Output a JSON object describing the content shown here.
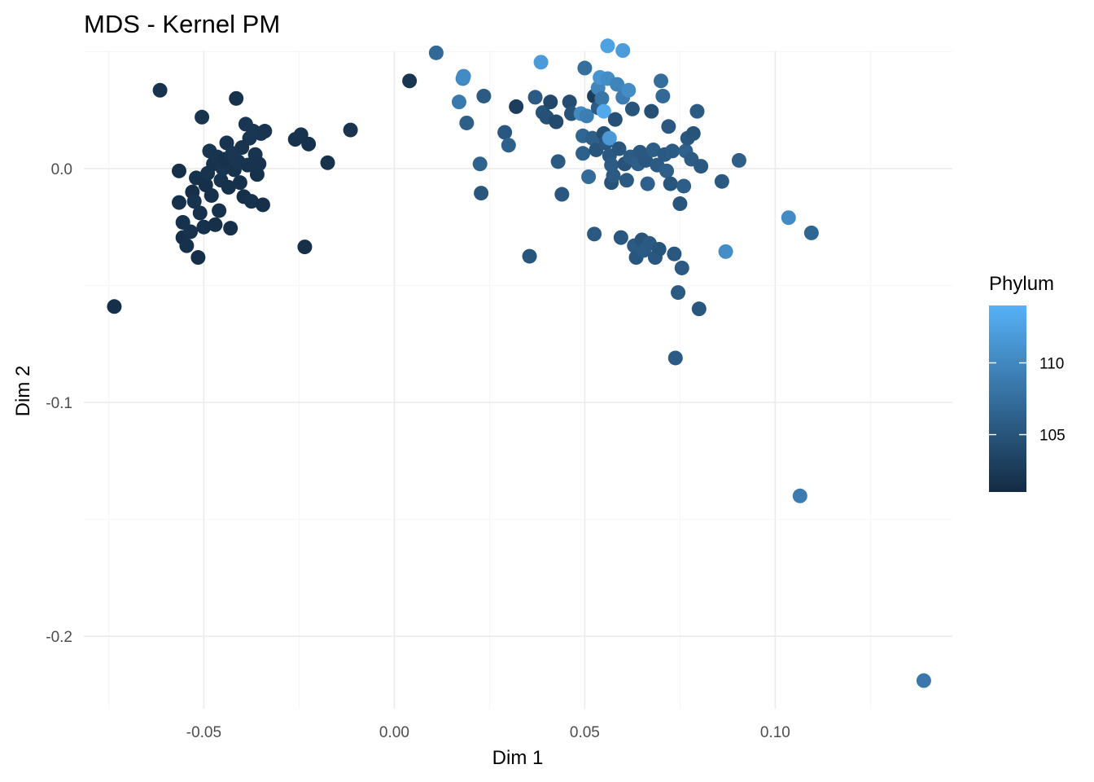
{
  "chart_data": {
    "type": "scatter",
    "title": "MDS - Kernel PM",
    "xlabel": "Dim 1",
    "ylabel": "Dim 2",
    "xlim": [
      -0.0815,
      0.1465
    ],
    "ylim": [
      -0.231,
      0.0505
    ],
    "x_ticks": [
      -0.05,
      0.0,
      0.05,
      0.1
    ],
    "x_tick_labels": [
      "-0.05",
      "0.00",
      "0.05",
      "0.10"
    ],
    "y_ticks": [
      0.0,
      -0.1,
      -0.2
    ],
    "y_tick_labels": [
      "0.0",
      "-0.1",
      "-0.2"
    ],
    "grid": true,
    "legend": {
      "title": "Phylum",
      "type": "colorbar",
      "placement": "right",
      "range": [
        101,
        114
      ],
      "ticks": [
        110,
        105
      ],
      "tick_labels": [
        "110",
        "105"
      ],
      "color_low": "#132B43",
      "color_high": "#56B1F7"
    },
    "points": [
      {
        "x": -0.0735,
        "y": -0.059,
        "c": 101.5
      },
      {
        "x": -0.0615,
        "y": 0.0335,
        "c": 101.8
      },
      {
        "x": -0.0565,
        "y": -0.001,
        "c": 101.5
      },
      {
        "x": -0.0565,
        "y": -0.0145,
        "c": 101.6
      },
      {
        "x": -0.0555,
        "y": -0.023,
        "c": 101.7
      },
      {
        "x": -0.0555,
        "y": -0.0295,
        "c": 101.5
      },
      {
        "x": -0.0545,
        "y": -0.033,
        "c": 101.6
      },
      {
        "x": -0.0535,
        "y": -0.027,
        "c": 101.7
      },
      {
        "x": -0.053,
        "y": -0.01,
        "c": 101.5
      },
      {
        "x": -0.0525,
        "y": -0.014,
        "c": 101.8
      },
      {
        "x": -0.052,
        "y": -0.004,
        "c": 101.6
      },
      {
        "x": -0.0515,
        "y": -0.038,
        "c": 101.5
      },
      {
        "x": -0.051,
        "y": -0.019,
        "c": 101.7
      },
      {
        "x": -0.0505,
        "y": 0.022,
        "c": 101.9
      },
      {
        "x": -0.05,
        "y": -0.025,
        "c": 101.6
      },
      {
        "x": -0.0495,
        "y": -0.007,
        "c": 101.5
      },
      {
        "x": -0.049,
        "y": -0.002,
        "c": 101.8
      },
      {
        "x": -0.0485,
        "y": 0.0075,
        "c": 102.0
      },
      {
        "x": -0.048,
        "y": -0.0115,
        "c": 101.6
      },
      {
        "x": -0.0475,
        "y": 0.002,
        "c": 101.7
      },
      {
        "x": -0.047,
        "y": -0.024,
        "c": 101.5
      },
      {
        "x": -0.0465,
        "y": 0.005,
        "c": 101.9
      },
      {
        "x": -0.046,
        "y": -0.018,
        "c": 101.6
      },
      {
        "x": -0.0455,
        "y": -0.005,
        "c": 101.8
      },
      {
        "x": -0.045,
        "y": 0.0,
        "c": 102.0
      },
      {
        "x": -0.0445,
        "y": 0.004,
        "c": 101.7
      },
      {
        "x": -0.044,
        "y": 0.011,
        "c": 101.9
      },
      {
        "x": -0.0435,
        "y": -0.008,
        "c": 101.6
      },
      {
        "x": -0.043,
        "y": -0.0255,
        "c": 101.5
      },
      {
        "x": -0.0425,
        "y": 0.0065,
        "c": 102.1
      },
      {
        "x": -0.042,
        "y": -0.0005,
        "c": 101.8
      },
      {
        "x": -0.0415,
        "y": 0.03,
        "c": 101.7
      },
      {
        "x": -0.041,
        "y": 0.003,
        "c": 102.0
      },
      {
        "x": -0.0405,
        "y": -0.006,
        "c": 101.6
      },
      {
        "x": -0.04,
        "y": 0.009,
        "c": 101.9
      },
      {
        "x": -0.0395,
        "y": -0.012,
        "c": 101.5
      },
      {
        "x": -0.039,
        "y": 0.019,
        "c": 102.2
      },
      {
        "x": -0.0385,
        "y": 0.0015,
        "c": 101.8
      },
      {
        "x": -0.038,
        "y": 0.013,
        "c": 102.0
      },
      {
        "x": -0.0375,
        "y": -0.014,
        "c": 101.7
      },
      {
        "x": -0.037,
        "y": 0.016,
        "c": 102.1
      },
      {
        "x": -0.0365,
        "y": 0.006,
        "c": 101.9
      },
      {
        "x": -0.036,
        "y": -0.0025,
        "c": 101.6
      },
      {
        "x": -0.0355,
        "y": 0.002,
        "c": 101.8
      },
      {
        "x": -0.035,
        "y": 0.015,
        "c": 102.0
      },
      {
        "x": -0.0345,
        "y": -0.0155,
        "c": 101.5
      },
      {
        "x": -0.034,
        "y": 0.016,
        "c": 101.9
      },
      {
        "x": -0.026,
        "y": 0.0125,
        "c": 101.7
      },
      {
        "x": -0.0245,
        "y": 0.0145,
        "c": 101.8
      },
      {
        "x": -0.0235,
        "y": -0.0335,
        "c": 101.5
      },
      {
        "x": -0.0225,
        "y": 0.0105,
        "c": 101.6
      },
      {
        "x": -0.0175,
        "y": 0.0025,
        "c": 101.7
      },
      {
        "x": -0.0115,
        "y": 0.0165,
        "c": 101.9
      },
      {
        "x": 0.004,
        "y": 0.0375,
        "c": 102.0
      },
      {
        "x": 0.011,
        "y": 0.0495,
        "c": 107.0
      },
      {
        "x": 0.017,
        "y": 0.0285,
        "c": 108.6
      },
      {
        "x": 0.018,
        "y": 0.0385,
        "c": 109.7
      },
      {
        "x": 0.0182,
        "y": 0.0395,
        "c": 110.3
      },
      {
        "x": 0.019,
        "y": 0.0195,
        "c": 106.0
      },
      {
        "x": 0.0225,
        "y": 0.002,
        "c": 106.4
      },
      {
        "x": 0.0228,
        "y": -0.0105,
        "c": 105.2
      },
      {
        "x": 0.0235,
        "y": 0.031,
        "c": 105.6
      },
      {
        "x": 0.029,
        "y": 0.0155,
        "c": 105.3
      },
      {
        "x": 0.03,
        "y": 0.01,
        "c": 106.1
      },
      {
        "x": 0.032,
        "y": 0.0265,
        "c": 102.7
      },
      {
        "x": 0.0355,
        "y": -0.0375,
        "c": 105.1
      },
      {
        "x": 0.037,
        "y": 0.0305,
        "c": 105.7
      },
      {
        "x": 0.0385,
        "y": 0.0455,
        "c": 111.8
      },
      {
        "x": 0.039,
        "y": 0.024,
        "c": 105.0
      },
      {
        "x": 0.04,
        "y": 0.022,
        "c": 104.6
      },
      {
        "x": 0.041,
        "y": 0.0285,
        "c": 103.8
      },
      {
        "x": 0.0425,
        "y": 0.02,
        "c": 104.0
      },
      {
        "x": 0.043,
        "y": 0.003,
        "c": 105.6
      },
      {
        "x": 0.044,
        "y": -0.011,
        "c": 105.3
      },
      {
        "x": 0.046,
        "y": 0.0285,
        "c": 104.3
      },
      {
        "x": 0.0465,
        "y": 0.0235,
        "c": 104.9
      },
      {
        "x": 0.049,
        "y": 0.0235,
        "c": 110.2
      },
      {
        "x": 0.0495,
        "y": 0.014,
        "c": 106.7
      },
      {
        "x": 0.0495,
        "y": 0.0065,
        "c": 106.1
      },
      {
        "x": 0.05,
        "y": 0.043,
        "c": 107.6
      },
      {
        "x": 0.0505,
        "y": 0.0225,
        "c": 109.0
      },
      {
        "x": 0.051,
        "y": -0.0035,
        "c": 107.2
      },
      {
        "x": 0.052,
        "y": 0.013,
        "c": 106.0
      },
      {
        "x": 0.0525,
        "y": 0.031,
        "c": 102.7
      },
      {
        "x": 0.053,
        "y": 0.008,
        "c": 105.1
      },
      {
        "x": 0.0525,
        "y": -0.028,
        "c": 105.5
      },
      {
        "x": 0.0535,
        "y": 0.026,
        "c": 105.8
      },
      {
        "x": 0.0535,
        "y": 0.0345,
        "c": 109.7
      },
      {
        "x": 0.054,
        "y": 0.039,
        "c": 111.2
      },
      {
        "x": 0.0545,
        "y": 0.03,
        "c": 108.3
      },
      {
        "x": 0.055,
        "y": 0.0245,
        "c": 113.3
      },
      {
        "x": 0.055,
        "y": 0.015,
        "c": 104.5
      },
      {
        "x": 0.0555,
        "y": 0.011,
        "c": 105.3
      },
      {
        "x": 0.056,
        "y": 0.0525,
        "c": 112.5
      },
      {
        "x": 0.056,
        "y": 0.0385,
        "c": 110.6
      },
      {
        "x": 0.0565,
        "y": 0.013,
        "c": 111.6
      },
      {
        "x": 0.0565,
        "y": 0.0055,
        "c": 105.4
      },
      {
        "x": 0.057,
        "y": 0.0015,
        "c": 105.8
      },
      {
        "x": 0.057,
        "y": -0.006,
        "c": 105.0
      },
      {
        "x": 0.0575,
        "y": -0.003,
        "c": 105.6
      },
      {
        "x": 0.058,
        "y": 0.021,
        "c": 104.6
      },
      {
        "x": 0.0585,
        "y": 0.036,
        "c": 109.6
      },
      {
        "x": 0.059,
        "y": 0.0085,
        "c": 105.2
      },
      {
        "x": 0.0595,
        "y": -0.0295,
        "c": 105.3
      },
      {
        "x": 0.06,
        "y": 0.0505,
        "c": 112.0
      },
      {
        "x": 0.06,
        "y": 0.0305,
        "c": 108.9
      },
      {
        "x": 0.0605,
        "y": 0.002,
        "c": 104.9
      },
      {
        "x": 0.061,
        "y": -0.005,
        "c": 105.5
      },
      {
        "x": 0.0615,
        "y": 0.0335,
        "c": 110.4
      },
      {
        "x": 0.062,
        "y": 0.005,
        "c": 105.8
      },
      {
        "x": 0.0625,
        "y": 0.0255,
        "c": 105.1
      },
      {
        "x": 0.063,
        "y": -0.033,
        "c": 105.6
      },
      {
        "x": 0.0635,
        "y": -0.038,
        "c": 105.2
      },
      {
        "x": 0.064,
        "y": 0.002,
        "c": 106.0
      },
      {
        "x": 0.0645,
        "y": 0.007,
        "c": 105.4
      },
      {
        "x": 0.065,
        "y": -0.0305,
        "c": 105.0
      },
      {
        "x": 0.0655,
        "y": -0.035,
        "c": 105.7
      },
      {
        "x": 0.066,
        "y": 0.0035,
        "c": 105.3
      },
      {
        "x": 0.0665,
        "y": -0.0065,
        "c": 106.1
      },
      {
        "x": 0.067,
        "y": -0.032,
        "c": 105.5
      },
      {
        "x": 0.0675,
        "y": 0.0245,
        "c": 104.5
      },
      {
        "x": 0.068,
        "y": 0.008,
        "c": 105.9
      },
      {
        "x": 0.0685,
        "y": -0.038,
        "c": 105.3
      },
      {
        "x": 0.069,
        "y": 0.0015,
        "c": 105.6
      },
      {
        "x": 0.0695,
        "y": -0.0345,
        "c": 105.1
      },
      {
        "x": 0.07,
        "y": 0.0375,
        "c": 107.5
      },
      {
        "x": 0.0705,
        "y": 0.031,
        "c": 107.0
      },
      {
        "x": 0.071,
        "y": 0.006,
        "c": 105.5
      },
      {
        "x": 0.0715,
        "y": -0.001,
        "c": 106.0
      },
      {
        "x": 0.072,
        "y": 0.018,
        "c": 105.4
      },
      {
        "x": 0.0725,
        "y": -0.0065,
        "c": 105.2
      },
      {
        "x": 0.073,
        "y": 0.0075,
        "c": 105.8
      },
      {
        "x": 0.0735,
        "y": -0.0365,
        "c": 105.3
      },
      {
        "x": 0.0738,
        "y": -0.081,
        "c": 105.7
      },
      {
        "x": 0.0745,
        "y": -0.053,
        "c": 105.5
      },
      {
        "x": 0.075,
        "y": -0.015,
        "c": 105.1
      },
      {
        "x": 0.0755,
        "y": -0.0425,
        "c": 105.6
      },
      {
        "x": 0.076,
        "y": -0.0075,
        "c": 105.9
      },
      {
        "x": 0.0765,
        "y": 0.0075,
        "c": 106.2
      },
      {
        "x": 0.077,
        "y": 0.013,
        "c": 105.3
      },
      {
        "x": 0.078,
        "y": 0.004,
        "c": 105.8
      },
      {
        "x": 0.0785,
        "y": 0.015,
        "c": 105.0
      },
      {
        "x": 0.0795,
        "y": 0.0245,
        "c": 105.6
      },
      {
        "x": 0.0805,
        "y": 0.001,
        "c": 105.4
      },
      {
        "x": 0.08,
        "y": -0.06,
        "c": 105.2
      },
      {
        "x": 0.086,
        "y": -0.0055,
        "c": 105.5
      },
      {
        "x": 0.087,
        "y": -0.0355,
        "c": 110.5
      },
      {
        "x": 0.0905,
        "y": 0.0035,
        "c": 106.0
      },
      {
        "x": 0.1035,
        "y": -0.021,
        "c": 110.3
      },
      {
        "x": 0.1065,
        "y": -0.14,
        "c": 108.8
      },
      {
        "x": 0.1095,
        "y": -0.0275,
        "c": 106.7
      },
      {
        "x": 0.139,
        "y": -0.219,
        "c": 108.5
      }
    ]
  }
}
